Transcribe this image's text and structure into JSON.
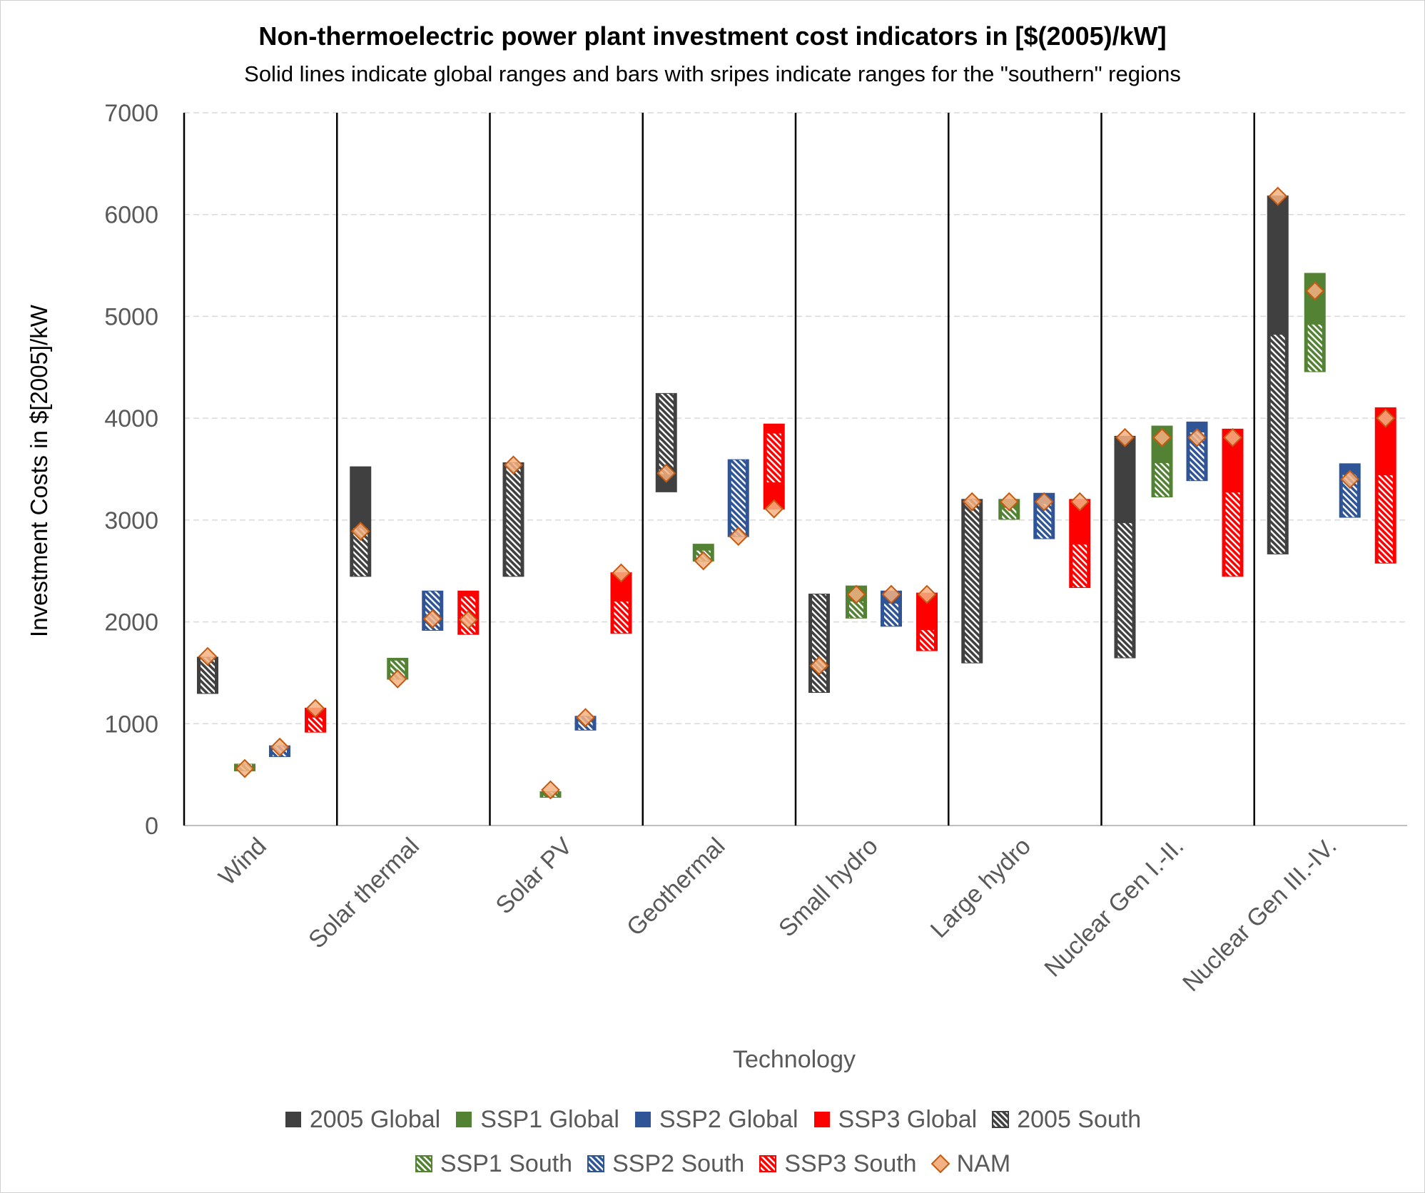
{
  "chart_data": {
    "type": "floating-range-bar",
    "title": "Non-thermoelectric power plant investment cost indicators in [$(2005)/kW]",
    "subtitle": "Solid lines indicate global ranges and  bars with sripes indicate ranges for the \"southern\" regions",
    "xlabel": "Technology",
    "ylabel": "Investment  Costs in $[2005]/kW",
    "ylim": [
      0,
      7000
    ],
    "yticks": [
      "0",
      "1000",
      "2000",
      "3000",
      "4000",
      "5000",
      "6000",
      "7000"
    ],
    "ytick_values": [
      0,
      1000,
      2000,
      3000,
      4000,
      5000,
      6000,
      7000
    ],
    "categories": [
      "Wind",
      "Solar thermal",
      "Solar PV",
      "Geothermal",
      "Small hydro",
      "Large hydro",
      "Nuclear Gen I.-II.",
      "Nuclear Gen III.-IV."
    ],
    "series": [
      {
        "name": "2005",
        "color": "#404040",
        "global_label": "2005 Global",
        "south_label": "2005 South",
        "global": [
          [
            1300,
            1650
          ],
          [
            2450,
            3520
          ],
          [
            2450,
            3560
          ],
          [
            3280,
            4240
          ],
          [
            1310,
            2270
          ],
          [
            1600,
            3200
          ],
          [
            1650,
            3820
          ],
          [
            2670,
            6180
          ]
        ],
        "south": [
          [
            1300,
            1650
          ],
          [
            2450,
            2920
          ],
          [
            2450,
            3560
          ],
          [
            3450,
            4240
          ],
          [
            1310,
            2270
          ],
          [
            1600,
            3200
          ],
          [
            1650,
            2970
          ],
          [
            2670,
            4820
          ]
        ]
      },
      {
        "name": "SSP1",
        "color": "#548235",
        "global_label": "SSP1 Global",
        "south_label": "SSP1 South",
        "global": [
          [
            540,
            600
          ],
          [
            1440,
            1640
          ],
          [
            280,
            330
          ],
          [
            2600,
            2760
          ],
          [
            2040,
            2350
          ],
          [
            3010,
            3200
          ],
          [
            3230,
            3920
          ],
          [
            4460,
            5420
          ]
        ],
        "south": [
          [
            540,
            600
          ],
          [
            1440,
            1620
          ],
          [
            280,
            330
          ],
          [
            2600,
            2700
          ],
          [
            2040,
            2200
          ],
          [
            3010,
            3120
          ],
          [
            3230,
            3560
          ],
          [
            4460,
            4920
          ]
        ]
      },
      {
        "name": "SSP2",
        "color": "#2F5597",
        "global_label": "SSP2 Global",
        "south_label": "SSP2 South",
        "global": [
          [
            680,
            780
          ],
          [
            1920,
            2300
          ],
          [
            940,
            1070
          ],
          [
            2840,
            3590
          ],
          [
            1960,
            2300
          ],
          [
            2820,
            3260
          ],
          [
            3390,
            3960
          ],
          [
            3030,
            3550
          ]
        ],
        "south": [
          [
            680,
            780
          ],
          [
            1920,
            2300
          ],
          [
            940,
            1070
          ],
          [
            2840,
            3590
          ],
          [
            1960,
            2180
          ],
          [
            2820,
            3160
          ],
          [
            3390,
            3860
          ],
          [
            3030,
            3450
          ]
        ]
      },
      {
        "name": "SSP3",
        "color": "#FF0000",
        "global_label": "SSP3 Global",
        "south_label": "SSP3 South",
        "global": [
          [
            920,
            1150
          ],
          [
            1880,
            2300
          ],
          [
            1890,
            2480
          ],
          [
            3110,
            3940
          ],
          [
            1720,
            2280
          ],
          [
            2340,
            3200
          ],
          [
            2450,
            3890
          ],
          [
            2580,
            4100
          ]
        ],
        "south": [
          [
            920,
            1060
          ],
          [
            1880,
            2250
          ],
          [
            1890,
            2200
          ],
          [
            3370,
            3850
          ],
          [
            1720,
            1920
          ],
          [
            2340,
            2760
          ],
          [
            2450,
            3270
          ],
          [
            2580,
            3440
          ]
        ]
      }
    ],
    "nam_label": "NAM",
    "nam_color": "#F4B183",
    "nam": [
      [
        1660,
        560,
        770,
        1150
      ],
      [
        2890,
        1440,
        2030,
        2020
      ],
      [
        3540,
        350,
        1060,
        2480
      ],
      [
        3460,
        2600,
        2840,
        3110
      ],
      [
        1570,
        2270,
        2270,
        2270
      ],
      [
        3180,
        3180,
        3180,
        3180
      ],
      [
        3810,
        3810,
        3810,
        3810
      ],
      [
        6180,
        5250,
        3400,
        4000
      ]
    ]
  }
}
